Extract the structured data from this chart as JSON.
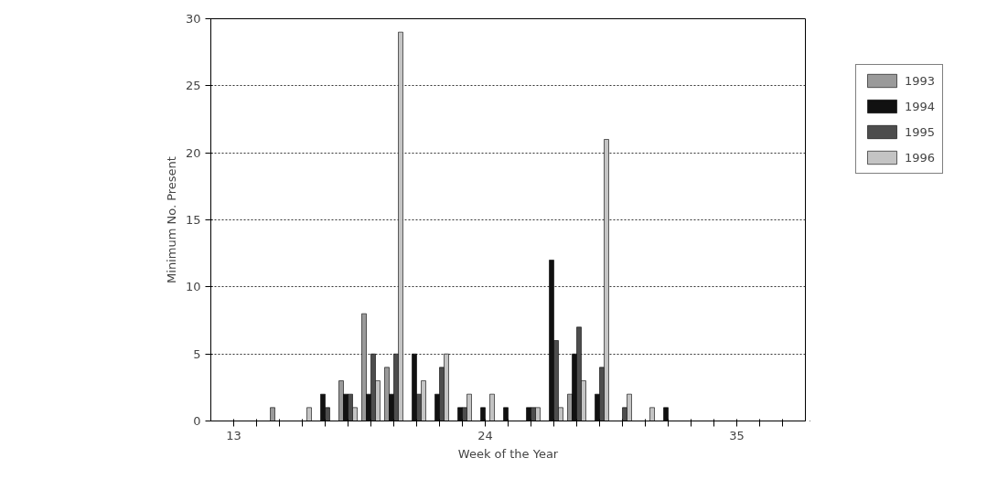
{
  "chart_data": {
    "type": "bar",
    "xlabel": "Week of the Year",
    "ylabel": "Minimum No. Present",
    "x": [
      15,
      16,
      17,
      18,
      19,
      20,
      21,
      22,
      23,
      24,
      25,
      26,
      27,
      28,
      29,
      30,
      31,
      32
    ],
    "series": [
      {
        "name": "1993",
        "color": "#9a9a9a",
        "values": [
          1,
          null,
          null,
          3,
          8,
          4,
          null,
          null,
          null,
          null,
          null,
          null,
          null,
          2,
          null,
          null,
          null,
          null
        ]
      },
      {
        "name": "1994",
        "color": "#111111",
        "values": [
          null,
          null,
          2,
          2,
          2,
          2,
          5,
          2,
          1,
          1,
          1,
          1,
          12,
          5,
          2,
          null,
          null,
          1
        ]
      },
      {
        "name": "1995",
        "color": "#4d4d4d",
        "values": [
          null,
          null,
          1,
          2,
          5,
          5,
          2,
          4,
          1,
          null,
          null,
          1,
          6,
          7,
          4,
          1,
          null,
          null
        ]
      },
      {
        "name": "1996",
        "color": "#c4c4c4",
        "values": [
          null,
          1,
          null,
          1,
          3,
          29,
          3,
          5,
          2,
          2,
          null,
          1,
          1,
          3,
          21,
          2,
          1,
          null
        ]
      }
    ],
    "xlim": [
      12,
      38
    ],
    "xticks": [
      {
        "value": 13,
        "label": "13"
      },
      {
        "value": 14,
        "label": null
      },
      {
        "value": 15,
        "label": null
      },
      {
        "value": 16,
        "label": null
      },
      {
        "value": 17,
        "label": null
      },
      {
        "value": 18,
        "label": null
      },
      {
        "value": 19,
        "label": null
      },
      {
        "value": 20,
        "label": null
      },
      {
        "value": 21,
        "label": null
      },
      {
        "value": 22,
        "label": null
      },
      {
        "value": 23,
        "label": null
      },
      {
        "value": 24,
        "label": "24"
      },
      {
        "value": 25,
        "label": null
      },
      {
        "value": 26,
        "label": null
      },
      {
        "value": 27,
        "label": null
      },
      {
        "value": 28,
        "label": null
      },
      {
        "value": 29,
        "label": null
      },
      {
        "value": 30,
        "label": null
      },
      {
        "value": 31,
        "label": null
      },
      {
        "value": 32,
        "label": null
      },
      {
        "value": 33,
        "label": null
      },
      {
        "value": 34,
        "label": null
      },
      {
        "value": 35,
        "label": "35"
      },
      {
        "value": 36,
        "label": null
      },
      {
        "value": 37,
        "label": null
      }
    ],
    "ylim": [
      0,
      30
    ],
    "yticks": [
      0,
      5,
      10,
      15,
      20,
      25,
      30
    ],
    "grid": "y",
    "legend": "top right"
  }
}
